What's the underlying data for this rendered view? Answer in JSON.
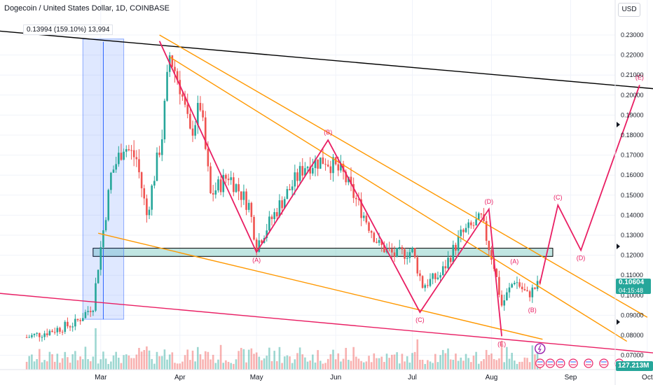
{
  "header": {
    "title": "Dogecoin / United States Dollar, 1D, COINBASE",
    "currency_button": "USD"
  },
  "measure": {
    "label": "0.13994 (159.10%) 13,994"
  },
  "last_price": {
    "value": "0.10604",
    "countdown": "04:15:48",
    "volume": "127.213M"
  },
  "colors": {
    "up": "#26a69a",
    "down": "#ef5350",
    "wave": "#e91e63",
    "channel": "#ff9800",
    "trend": "#000000",
    "support_zone": "#4db6ac",
    "measure_box": "#2962ff"
  },
  "chart_data": {
    "type": "candlestick",
    "x_axis": {
      "tick_labels": [
        "Mar",
        "Apr",
        "May",
        "Jun",
        "Jul",
        "Aug",
        "Sep",
        "Oct"
      ]
    },
    "y_axis": {
      "tick_labels": [
        "0.23000",
        "0.22000",
        "0.21000",
        "0.20000",
        "0.19000",
        "0.18000",
        "0.17000",
        "0.16000",
        "0.15000",
        "0.14000",
        "0.13000",
        "0.12000",
        "0.11000",
        "0.10000",
        "0.09000",
        "0.08000",
        "0.07000"
      ],
      "range": [
        0.065,
        0.235
      ]
    },
    "price_anchors": [
      {
        "date": "2024-02-01",
        "close": 0.079
      },
      {
        "date": "2024-02-10",
        "close": 0.082
      },
      {
        "date": "2024-02-20",
        "close": 0.086
      },
      {
        "date": "2024-02-27",
        "close": 0.095
      },
      {
        "date": "2024-02-29",
        "close": 0.115
      },
      {
        "date": "2024-03-04",
        "close": 0.15
      },
      {
        "date": "2024-03-05",
        "close": 0.16
      },
      {
        "date": "2024-03-10",
        "close": 0.175
      },
      {
        "date": "2024-03-15",
        "close": 0.168
      },
      {
        "date": "2024-03-19",
        "close": 0.14
      },
      {
        "date": "2024-03-25",
        "close": 0.18
      },
      {
        "date": "2024-03-28",
        "close": 0.22
      },
      {
        "date": "2024-04-01",
        "close": 0.205
      },
      {
        "date": "2024-04-05",
        "close": 0.18
      },
      {
        "date": "2024-04-09",
        "close": 0.195
      },
      {
        "date": "2024-04-13",
        "close": 0.15
      },
      {
        "date": "2024-04-20",
        "close": 0.16
      },
      {
        "date": "2024-04-28",
        "close": 0.145
      },
      {
        "date": "2024-05-01",
        "close": 0.125
      },
      {
        "date": "2024-05-10",
        "close": 0.145
      },
      {
        "date": "2024-05-20",
        "close": 0.165
      },
      {
        "date": "2024-05-28",
        "close": 0.168
      },
      {
        "date": "2024-06-04",
        "close": 0.16
      },
      {
        "date": "2024-06-10",
        "close": 0.145
      },
      {
        "date": "2024-06-18",
        "close": 0.125
      },
      {
        "date": "2024-06-24",
        "close": 0.12
      },
      {
        "date": "2024-07-01",
        "close": 0.122
      },
      {
        "date": "2024-07-05",
        "close": 0.105
      },
      {
        "date": "2024-07-12",
        "close": 0.11
      },
      {
        "date": "2024-07-20",
        "close": 0.13
      },
      {
        "date": "2024-07-28",
        "close": 0.138
      },
      {
        "date": "2024-08-02",
        "close": 0.115
      },
      {
        "date": "2024-08-05",
        "close": 0.095
      },
      {
        "date": "2024-08-10",
        "close": 0.108
      },
      {
        "date": "2024-08-15",
        "close": 0.1
      },
      {
        "date": "2024-08-20",
        "close": 0.106
      }
    ],
    "wave_path": [
      {
        "date": "2024-03-24",
        "value": 0.227
      },
      {
        "date": "2024-05-01",
        "value": 0.1215,
        "label": "(A)"
      },
      {
        "date": "2024-05-29",
        "value": 0.1775,
        "label": "(B)"
      },
      {
        "date": "2024-07-04",
        "value": 0.0915,
        "label": "(C)"
      },
      {
        "date": "2024-07-31",
        "value": 0.143,
        "label": "(D)"
      },
      {
        "date": "2024-08-05",
        "value": 0.0795,
        "label": "(E)"
      }
    ],
    "sub_wave_labels": [
      {
        "label": "(A)",
        "date": "2024-08-10",
        "value": 0.113
      },
      {
        "label": "(B)",
        "date": "2024-08-17",
        "value": 0.0965
      }
    ],
    "projection_path": [
      {
        "date": "2024-08-20",
        "value": 0.106
      },
      {
        "date": "2024-08-27",
        "value": 0.145,
        "label": "(C)"
      },
      {
        "date": "2024-09-05",
        "value": 0.1225,
        "label": "(D)"
      },
      {
        "date": "2024-09-28",
        "value": 0.205,
        "label": "(E)"
      }
    ],
    "trendlines": [
      {
        "name": "black-resistance",
        "from": {
          "date": "2024-01-21",
          "value": 0.232
        },
        "to": {
          "date": "2024-10-14",
          "value": 0.202
        }
      },
      {
        "name": "orange-upper-1",
        "from": {
          "date": "2024-03-24",
          "value": 0.23
        },
        "to": {
          "date": "2024-10-01",
          "value": 0.089
        }
      },
      {
        "name": "orange-upper-2",
        "from": {
          "date": "2024-03-28",
          "value": 0.219
        },
        "to": {
          "date": "2024-09-23",
          "value": 0.077
        }
      },
      {
        "name": "orange-lower",
        "from": {
          "date": "2024-02-29",
          "value": 0.131
        },
        "to": {
          "date": "2024-08-21",
          "value": 0.078
        }
      },
      {
        "name": "red-support",
        "from": {
          "date": "2024-01-21",
          "value": 0.101
        },
        "to": {
          "date": "2024-10-14",
          "value": 0.07
        }
      }
    ],
    "support_zone": {
      "from": "2024-02-27",
      "to": "2024-08-25",
      "top": 0.1235,
      "bottom": 0.1215
    },
    "measure_range": {
      "from": "2024-02-23",
      "to": "2024-03-10",
      "top": 0.228,
      "bottom": 0.088
    }
  }
}
